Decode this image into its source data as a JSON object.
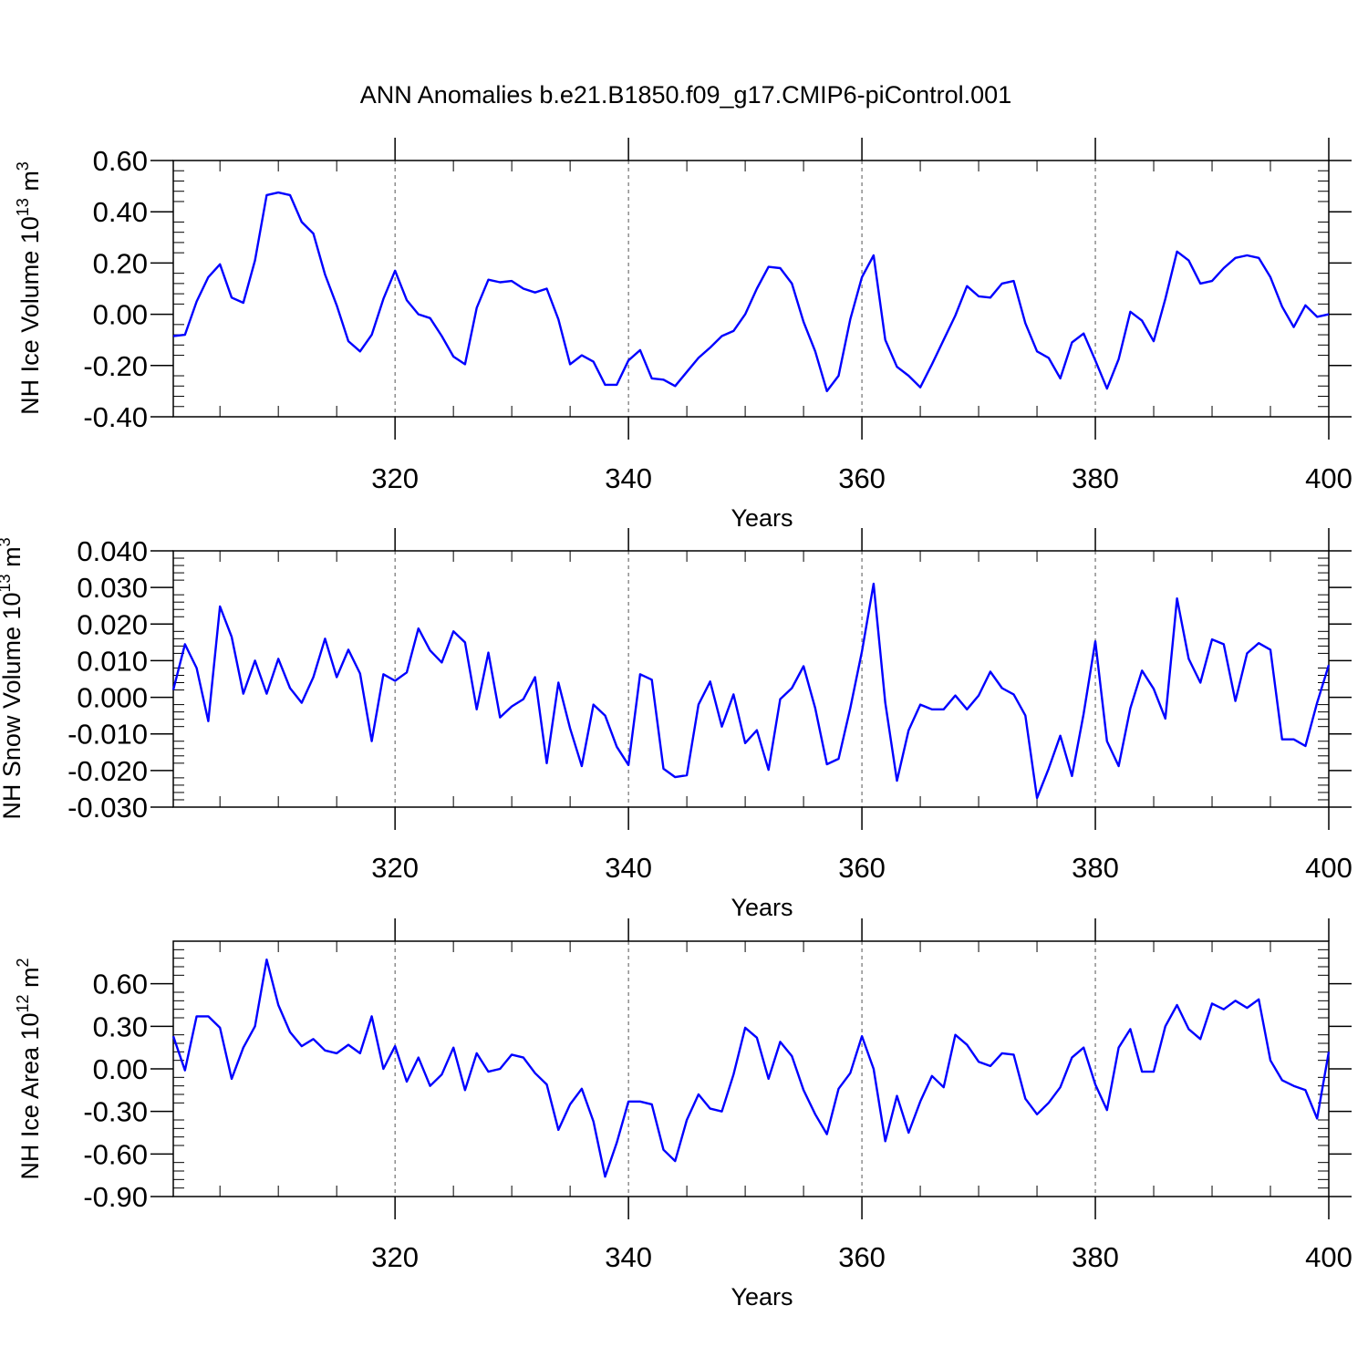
{
  "title": "ANN Anomalies b.e21.B1850.f09_g17.CMIP6-piControl.001",
  "colors": {
    "line": "#0000ff",
    "axis": "#000000",
    "grid": "#555555"
  },
  "chart_data": [
    {
      "type": "line",
      "ylabel": "NH Ice Volume 10",
      "ylabel_exp": "13",
      "ylabel_unit": " m",
      "ylabel_unit_exp": "3",
      "xlabel": "Years",
      "xlim": [
        301,
        400
      ],
      "ylim": [
        -0.4,
        0.6
      ],
      "xticks": [
        320,
        340,
        360,
        380,
        400
      ],
      "xtick_labels": [
        "320",
        "340",
        "360",
        "380",
        "400"
      ],
      "yticks": [
        -0.4,
        -0.2,
        0.0,
        0.2,
        0.4,
        0.6
      ],
      "ytick_labels": [
        "-0.40",
        "-0.20",
        "0.00",
        "0.20",
        "0.40",
        "0.60"
      ],
      "grid": "dashed vertical at major x ticks",
      "x_start": 301,
      "series": [
        {
          "values": [
            -0.085,
            -0.08,
            0.05,
            0.145,
            0.195,
            0.065,
            0.045,
            0.21,
            0.465,
            0.475,
            0.465,
            0.36,
            0.315,
            0.155,
            0.035,
            -0.105,
            -0.145,
            -0.08,
            0.06,
            0.17,
            0.055,
            0.0,
            -0.015,
            -0.085,
            -0.165,
            -0.195,
            0.025,
            0.135,
            0.125,
            0.13,
            0.1,
            0.085,
            0.1,
            -0.02,
            -0.195,
            -0.16,
            -0.185,
            -0.275,
            -0.275,
            -0.18,
            -0.14,
            -0.25,
            -0.255,
            -0.28,
            -0.225,
            -0.17,
            -0.13,
            -0.085,
            -0.065,
            0.0,
            0.1,
            0.185,
            0.18,
            0.12,
            -0.03,
            -0.145,
            -0.3,
            -0.24,
            -0.02,
            0.145,
            0.23,
            -0.1,
            -0.205,
            -0.24,
            -0.285,
            -0.195,
            -0.1,
            -0.005,
            0.11,
            0.07,
            0.065,
            0.12,
            0.13,
            -0.035,
            -0.145,
            -0.17,
            -0.25,
            -0.11,
            -0.075,
            -0.18,
            -0.29,
            -0.175,
            0.01,
            -0.025,
            -0.105,
            0.06,
            0.245,
            0.21,
            0.12,
            0.13,
            0.18,
            0.22,
            0.23,
            0.22,
            0.145,
            0.03,
            -0.05,
            0.035,
            -0.01,
            0.0
          ]
        }
      ]
    },
    {
      "type": "line",
      "ylabel": "NH Snow Volume 10",
      "ylabel_exp": "13",
      "ylabel_unit": " m",
      "ylabel_unit_exp": "3",
      "xlabel": "Years",
      "xlim": [
        301,
        400
      ],
      "ylim": [
        -0.03,
        0.04
      ],
      "xticks": [
        320,
        340,
        360,
        380,
        400
      ],
      "xtick_labels": [
        "320",
        "340",
        "360",
        "380",
        "400"
      ],
      "yticks": [
        -0.03,
        -0.02,
        -0.01,
        0.0,
        0.01,
        0.02,
        0.03,
        0.04
      ],
      "ytick_labels": [
        "-0.030",
        "-0.020",
        "-0.010",
        "0.000",
        "0.010",
        "0.020",
        "0.030",
        "0.040"
      ],
      "grid": "dashed vertical at major x ticks",
      "x_start": 301,
      "series": [
        {
          "values": [
            0.002,
            0.0145,
            0.008,
            -0.0065,
            0.0248,
            0.0165,
            0.001,
            0.01,
            0.001,
            0.0105,
            0.0025,
            -0.0015,
            0.0055,
            0.016,
            0.0055,
            0.013,
            0.0065,
            -0.012,
            0.0063,
            0.0045,
            0.0068,
            0.0188,
            0.0128,
            0.0095,
            0.018,
            0.015,
            -0.0033,
            0.0122,
            -0.0055,
            -0.0025,
            -0.0005,
            0.0055,
            -0.018,
            0.004,
            -0.0085,
            -0.0188,
            -0.002,
            -0.005,
            -0.0135,
            -0.0185,
            0.0063,
            0.0048,
            -0.0195,
            -0.0218,
            -0.0213,
            -0.002,
            0.0043,
            -0.008,
            0.0008,
            -0.0125,
            -0.009,
            -0.0198,
            -0.0005,
            0.0025,
            0.0085,
            -0.003,
            -0.0183,
            -0.0168,
            -0.003,
            0.0125,
            0.031,
            -0.0015,
            -0.0228,
            -0.009,
            -0.002,
            -0.0033,
            -0.0033,
            0.0005,
            -0.0033,
            0.0005,
            0.007,
            0.0025,
            0.0008,
            -0.005,
            -0.0275,
            -0.0195,
            -0.0105,
            -0.0215,
            -0.0045,
            0.0153,
            -0.012,
            -0.0188,
            -0.003,
            0.0073,
            0.0023,
            -0.0058,
            0.027,
            0.0105,
            0.004,
            0.0158,
            0.0145,
            -0.001,
            0.012,
            0.0148,
            0.013,
            -0.0115,
            -0.0115,
            -0.0133,
            -0.0015,
            0.0088
          ]
        }
      ]
    },
    {
      "type": "line",
      "ylabel": "NH Ice Area 10",
      "ylabel_exp": "12",
      "ylabel_unit": " m",
      "ylabel_unit_exp": "2",
      "xlabel": "Years",
      "xlim": [
        301,
        400
      ],
      "ylim": [
        -0.9,
        0.9
      ],
      "xticks": [
        320,
        340,
        360,
        380,
        400
      ],
      "xtick_labels": [
        "320",
        "340",
        "360",
        "380",
        "400"
      ],
      "yticks": [
        -0.9,
        -0.6,
        -0.3,
        0.0,
        0.3,
        0.6
      ],
      "ytick_labels": [
        "-0.90",
        "-0.60",
        "-0.30",
        "0.00",
        "0.30",
        "0.60"
      ],
      "grid": "dashed vertical at major x ticks",
      "x_start": 301,
      "series": [
        {
          "values": [
            0.23,
            -0.01,
            0.37,
            0.37,
            0.29,
            -0.07,
            0.15,
            0.3,
            0.77,
            0.45,
            0.26,
            0.16,
            0.21,
            0.13,
            0.11,
            0.17,
            0.11,
            0.37,
            0.0,
            0.16,
            -0.09,
            0.08,
            -0.12,
            -0.04,
            0.15,
            -0.15,
            0.11,
            -0.02,
            0.0,
            0.1,
            0.08,
            -0.03,
            -0.11,
            -0.43,
            -0.25,
            -0.14,
            -0.37,
            -0.76,
            -0.52,
            -0.23,
            -0.23,
            -0.25,
            -0.57,
            -0.65,
            -0.36,
            -0.18,
            -0.28,
            -0.3,
            -0.04,
            0.29,
            0.22,
            -0.07,
            0.19,
            0.09,
            -0.15,
            -0.32,
            -0.46,
            -0.14,
            -0.03,
            0.23,
            0.0,
            -0.51,
            -0.19,
            -0.45,
            -0.23,
            -0.05,
            -0.13,
            0.24,
            0.17,
            0.05,
            0.02,
            0.11,
            0.1,
            -0.21,
            -0.32,
            -0.24,
            -0.13,
            0.08,
            0.15,
            -0.11,
            -0.29,
            0.15,
            0.28,
            -0.02,
            -0.02,
            0.3,
            0.45,
            0.28,
            0.21,
            0.46,
            0.42,
            0.48,
            0.43,
            0.49,
            0.06,
            -0.08,
            -0.12,
            -0.15,
            -0.35,
            0.12
          ]
        }
      ]
    }
  ]
}
